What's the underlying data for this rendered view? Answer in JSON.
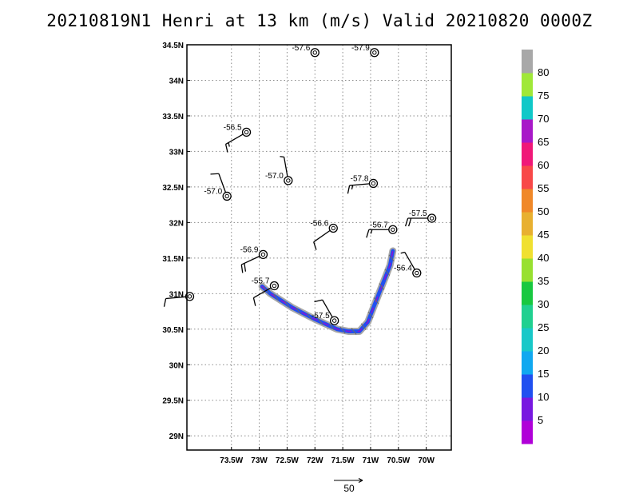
{
  "title": "20210819N1 Henri at 13 km (m/s) Valid 20210820 0000Z",
  "chart_data": {
    "type": "scatter",
    "xlim": [
      -74.3,
      -69.55
    ],
    "ylim": [
      28.8,
      34.5
    ],
    "x_ticks": [
      -73.5,
      -73,
      -72.5,
      -72,
      -71.5,
      -71,
      -70.5,
      -70
    ],
    "x_tick_labels": [
      "73.5W",
      "73W",
      "72.5W",
      "72W",
      "71.5W",
      "71W",
      "70.5W",
      "70W"
    ],
    "y_ticks": [
      29,
      29.5,
      30,
      30.5,
      31,
      31.5,
      32,
      32.5,
      33,
      33.5,
      34,
      34.5
    ],
    "y_tick_labels": [
      "29N",
      "29.5N",
      "30N",
      "30.5N",
      "31N",
      "31.5N",
      "32N",
      "32.5N",
      "33N",
      "33.5N",
      "34N",
      "34.5N"
    ],
    "grid": true,
    "stations": [
      {
        "lon": -72.0,
        "lat": 34.39,
        "label": "-57.6",
        "dir": 0,
        "speed": 0
      },
      {
        "lon": -70.93,
        "lat": 34.39,
        "label": "-57.9",
        "dir": 0,
        "speed": 0
      },
      {
        "lon": -73.23,
        "lat": 33.27,
        "label": "-56.5",
        "dir": 240,
        "speed": 15
      },
      {
        "lon": -73.58,
        "lat": 32.37,
        "label": "-57.0",
        "dir": 340,
        "speed": 10
      },
      {
        "lon": -72.48,
        "lat": 32.59,
        "label": "-57.0",
        "dir": 350,
        "speed": 5
      },
      {
        "lon": -70.95,
        "lat": 32.55,
        "label": "-57.8",
        "dir": 265,
        "speed": 15
      },
      {
        "lon": -71.67,
        "lat": 31.92,
        "label": "-56.6",
        "dir": 235,
        "speed": 10
      },
      {
        "lon": -70.6,
        "lat": 31.9,
        "label": "-56.7",
        "dir": 270,
        "speed": 15
      },
      {
        "lon": -69.9,
        "lat": 32.06,
        "label": "-57.5",
        "dir": 270,
        "speed": 20
      },
      {
        "lon": -72.93,
        "lat": 31.55,
        "label": "-56.9",
        "dir": 245,
        "speed": 20
      },
      {
        "lon": -70.17,
        "lat": 31.29,
        "label": "-56.4",
        "dir": 330,
        "speed": 5
      },
      {
        "lon": -72.73,
        "lat": 31.11,
        "label": "-55.7",
        "dir": 240,
        "speed": 10
      },
      {
        "lon": -71.65,
        "lat": 30.62,
        "label": "-57.5",
        "dir": 330,
        "speed": 10
      },
      {
        "lon": -74.25,
        "lat": 30.96,
        "label": "",
        "dir": 265,
        "speed": 10
      }
    ],
    "band": [
      [
        -72.95,
        31.1
      ],
      [
        -72.8,
        31.0
      ],
      [
        -72.6,
        30.9
      ],
      [
        -72.4,
        30.8
      ],
      [
        -72.2,
        30.72
      ],
      [
        -72.0,
        30.64
      ],
      [
        -71.8,
        30.57
      ],
      [
        -71.6,
        30.5
      ],
      [
        -71.4,
        30.47
      ],
      [
        -71.2,
        30.47
      ],
      [
        -71.05,
        30.6
      ],
      [
        -70.95,
        30.8
      ],
      [
        -70.85,
        31.0
      ],
      [
        -70.75,
        31.2
      ],
      [
        -70.65,
        31.4
      ],
      [
        -70.6,
        31.6
      ]
    ],
    "band_width_deg": 0.07,
    "colorbar": {
      "levels": [
        5,
        10,
        15,
        20,
        25,
        30,
        35,
        40,
        45,
        50,
        55,
        60,
        65,
        70,
        75,
        80
      ],
      "colors": [
        "#b000d8",
        "#7818e0",
        "#2050f0",
        "#10a8f0",
        "#18c8c8",
        "#20d090",
        "#18c840",
        "#98e030",
        "#f0e030",
        "#e8b030",
        "#f08828",
        "#f84848",
        "#f01878",
        "#a818c8",
        "#10c8c8",
        "#a0e838",
        "#a8a8a8"
      ]
    },
    "reference_vector": {
      "label": "50"
    }
  }
}
